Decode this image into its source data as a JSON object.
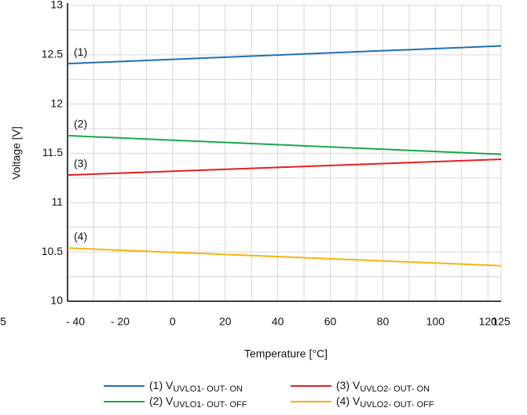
{
  "chart_data": {
    "type": "line",
    "y_label": "Voltage [V]",
    "x_label": "Temperature [°C]",
    "xlim": [
      -40,
      125
    ],
    "ylim": [
      10,
      13
    ],
    "xticks": [
      {
        "value": -40,
        "label": "- 40"
      },
      {
        "value": -20,
        "label": "- 20"
      },
      0,
      20,
      40,
      60,
      80,
      100,
      120,
      125
    ],
    "yticks": [
      10,
      10.5,
      11,
      11.5,
      12,
      12.5,
      13
    ],
    "edge_label": "5",
    "grid": true,
    "x": [
      -40,
      125
    ],
    "series": [
      {
        "name": "(1) V",
        "subscript": "UVLO1- OUT- ON",
        "tag": "(1)",
        "color": "#1f6fb4",
        "values": [
          12.41,
          12.59
        ]
      },
      {
        "name": "(2) V",
        "subscript": "UVLO1- OUT- OFF",
        "tag": "(2)",
        "color": "#18a94a",
        "values": [
          11.68,
          11.49
        ]
      },
      {
        "name": "(3) V",
        "subscript": "UVLO2- OUT- ON",
        "tag": "(3)",
        "color": "#e41f1f",
        "values": [
          11.28,
          11.44
        ]
      },
      {
        "name": "(4) V",
        "subscript": "UVLO2- OUT- OFF",
        "tag": "(4)",
        "color": "#f5b40f",
        "values": [
          10.54,
          10.36
        ]
      }
    ]
  }
}
